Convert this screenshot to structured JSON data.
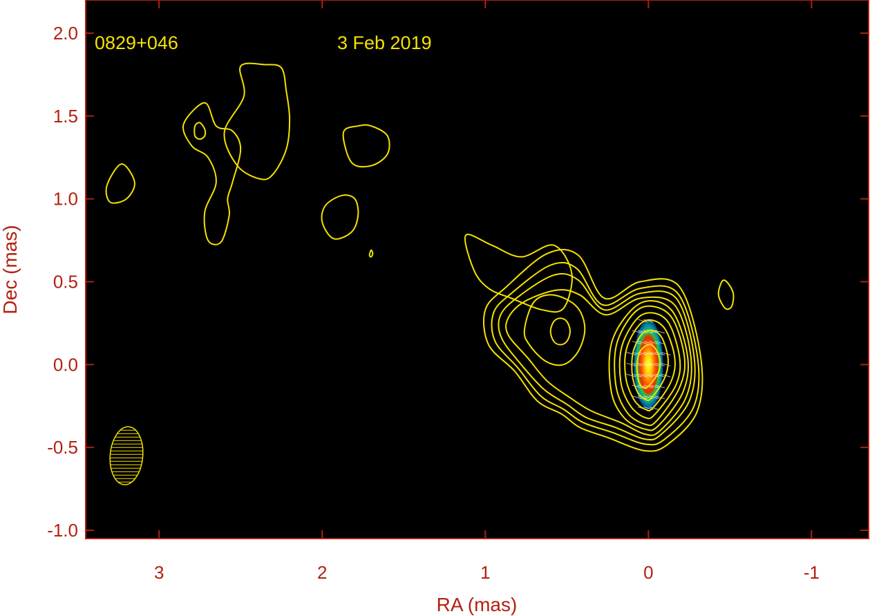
{
  "chart_data": {
    "type": "contour",
    "annotations": {
      "source": "0829+046",
      "date": "3 Feb 2019"
    },
    "xlabel": "RA (mas)",
    "ylabel": "Dec (mas)",
    "xlim": [
      3.45,
      -1.35
    ],
    "ylim": [
      -1.05,
      2.2
    ],
    "xticks": [
      3,
      2,
      1,
      0,
      -1
    ],
    "xtick_labels": [
      "3",
      "2",
      "1",
      "0",
      "-1"
    ],
    "yticks": [
      2.0,
      1.5,
      1.0,
      0.5,
      0.0,
      -0.5,
      -1.0
    ],
    "ytick_labels": [
      "2.0",
      "1.5",
      "1.0",
      "0.5",
      "0.0",
      "-0.5",
      "-1.0"
    ],
    "core": {
      "ra": 0.0,
      "dec": 0.0,
      "ra_halfwidth": 0.09,
      "dec_halfwidth": 0.27
    },
    "beam": {
      "ra": 3.2,
      "dec": -0.55,
      "major": 0.35,
      "minor": 0.2,
      "pa_deg": 5
    },
    "core_contours": [
      [
        [
          -0.32,
          0.05
        ],
        [
          -0.3,
          -0.28
        ],
        [
          -0.12,
          -0.48
        ],
        [
          0.02,
          -0.52
        ],
        [
          0.25,
          -0.44
        ],
        [
          0.42,
          -0.38
        ],
        [
          0.53,
          -0.3
        ],
        [
          0.68,
          -0.22
        ],
        [
          0.82,
          -0.04
        ],
        [
          0.98,
          0.12
        ],
        [
          1.0,
          0.33
        ],
        [
          0.87,
          0.47
        ],
        [
          0.62,
          0.67
        ],
        [
          0.43,
          0.66
        ],
        [
          0.27,
          0.4
        ],
        [
          0.05,
          0.5
        ],
        [
          -0.19,
          0.47
        ]
      ],
      [
        [
          -0.3,
          0.05
        ],
        [
          -0.28,
          -0.25
        ],
        [
          -0.1,
          -0.45
        ],
        [
          0.02,
          -0.48
        ],
        [
          0.22,
          -0.41
        ],
        [
          0.4,
          -0.35
        ],
        [
          0.52,
          -0.27
        ],
        [
          0.66,
          -0.19
        ],
        [
          0.8,
          -0.02
        ],
        [
          0.94,
          0.14
        ],
        [
          0.95,
          0.31
        ],
        [
          0.84,
          0.43
        ],
        [
          0.6,
          0.6
        ],
        [
          0.44,
          0.58
        ],
        [
          0.28,
          0.36
        ],
        [
          0.05,
          0.46
        ],
        [
          -0.18,
          0.43
        ]
      ],
      [
        [
          -0.28,
          0.05
        ],
        [
          -0.25,
          -0.22
        ],
        [
          -0.08,
          -0.42
        ],
        [
          0.02,
          -0.45
        ],
        [
          0.2,
          -0.38
        ],
        [
          0.38,
          -0.32
        ],
        [
          0.5,
          -0.24
        ],
        [
          0.64,
          -0.15
        ],
        [
          0.78,
          0.0
        ],
        [
          0.9,
          0.16
        ],
        [
          0.91,
          0.29
        ],
        [
          0.81,
          0.4
        ],
        [
          0.58,
          0.54
        ],
        [
          0.43,
          0.51
        ],
        [
          0.27,
          0.33
        ],
        [
          0.05,
          0.43
        ],
        [
          -0.17,
          0.4
        ]
      ],
      [
        [
          -0.26,
          0.05
        ],
        [
          -0.23,
          -0.2
        ],
        [
          -0.07,
          -0.4
        ],
        [
          0.02,
          -0.42
        ],
        [
          0.17,
          -0.35
        ],
        [
          0.35,
          -0.28
        ],
        [
          0.48,
          -0.2
        ],
        [
          0.62,
          -0.1
        ],
        [
          0.74,
          0.04
        ],
        [
          0.86,
          0.18
        ],
        [
          0.86,
          0.28
        ],
        [
          0.76,
          0.38
        ],
        [
          0.56,
          0.45
        ],
        [
          0.42,
          0.42
        ],
        [
          0.26,
          0.3
        ],
        [
          0.05,
          0.4
        ],
        [
          -0.16,
          0.36
        ]
      ],
      [
        [
          -0.24,
          0.05
        ],
        [
          -0.21,
          -0.17
        ],
        [
          -0.06,
          -0.37
        ],
        [
          0.02,
          -0.39
        ],
        [
          0.15,
          -0.32
        ],
        [
          0.23,
          -0.15
        ],
        [
          0.22,
          0.15
        ],
        [
          0.05,
          0.37
        ],
        [
          -0.14,
          0.33
        ]
      ],
      [
        [
          -0.22,
          0.05
        ],
        [
          -0.19,
          -0.14
        ],
        [
          -0.05,
          -0.34
        ],
        [
          0.02,
          -0.36
        ],
        [
          0.13,
          -0.29
        ],
        [
          0.2,
          -0.12
        ],
        [
          0.19,
          0.14
        ],
        [
          0.05,
          0.34
        ],
        [
          -0.13,
          0.3
        ]
      ],
      [
        [
          -0.19,
          0.05
        ],
        [
          -0.17,
          -0.12
        ],
        [
          -0.04,
          -0.3
        ],
        [
          0.02,
          -0.32
        ],
        [
          0.11,
          -0.25
        ],
        [
          0.17,
          -0.1
        ],
        [
          0.16,
          0.12
        ],
        [
          0.04,
          0.3
        ],
        [
          -0.11,
          0.27
        ]
      ],
      [
        [
          -0.16,
          0.05
        ],
        [
          -0.14,
          -0.1
        ],
        [
          -0.03,
          -0.26
        ],
        [
          0.02,
          -0.27
        ],
        [
          0.09,
          -0.21
        ],
        [
          0.14,
          -0.07
        ],
        [
          0.13,
          0.11
        ],
        [
          0.03,
          0.26
        ],
        [
          -0.09,
          0.23
        ]
      ],
      [
        [
          -0.12,
          0.04
        ],
        [
          -0.1,
          -0.08
        ],
        [
          -0.02,
          -0.2
        ],
        [
          0.02,
          -0.21
        ],
        [
          0.07,
          -0.16
        ],
        [
          0.1,
          -0.05
        ],
        [
          0.09,
          0.09
        ],
        [
          0.02,
          0.2
        ],
        [
          -0.07,
          0.18
        ]
      ],
      [
        [
          -0.07,
          0.03
        ],
        [
          -0.06,
          -0.05
        ],
        [
          0.0,
          -0.13
        ],
        [
          0.03,
          -0.14
        ],
        [
          0.06,
          -0.1
        ],
        [
          0.07,
          0.0
        ],
        [
          0.05,
          0.08
        ],
        [
          0.0,
          0.12
        ],
        [
          -0.04,
          0.1
        ]
      ]
    ],
    "jet_contours": [
      [
        [
          0.76,
          0.21
        ],
        [
          0.73,
          0.12
        ],
        [
          0.63,
          0.02
        ],
        [
          0.52,
          0.0
        ],
        [
          0.43,
          0.08
        ],
        [
          0.39,
          0.22
        ],
        [
          0.44,
          0.35
        ],
        [
          0.58,
          0.42
        ],
        [
          0.7,
          0.38
        ]
      ],
      [
        [
          0.6,
          0.2
        ],
        [
          0.58,
          0.14
        ],
        [
          0.54,
          0.12
        ],
        [
          0.5,
          0.14
        ],
        [
          0.48,
          0.2
        ],
        [
          0.5,
          0.26
        ],
        [
          0.54,
          0.28
        ],
        [
          0.58,
          0.26
        ]
      ],
      [
        [
          1.12,
          0.78
        ],
        [
          1.07,
          0.57
        ],
        [
          0.98,
          0.46
        ],
        [
          0.84,
          0.4
        ],
        [
          0.65,
          0.33
        ],
        [
          0.52,
          0.34
        ],
        [
          0.47,
          0.55
        ],
        [
          0.58,
          0.72
        ],
        [
          0.78,
          0.65
        ],
        [
          0.96,
          0.72
        ]
      ],
      [
        [
          -0.48,
          0.5
        ],
        [
          -0.52,
          0.43
        ],
        [
          -0.51,
          0.35
        ],
        [
          -0.47,
          0.34
        ],
        [
          -0.43,
          0.42
        ],
        [
          -0.45,
          0.5
        ]
      ],
      [
        [
          1.78,
          1.44
        ],
        [
          1.87,
          1.4
        ],
        [
          1.82,
          1.22
        ],
        [
          1.7,
          1.2
        ],
        [
          1.6,
          1.27
        ],
        [
          1.6,
          1.38
        ],
        [
          1.7,
          1.44
        ]
      ],
      [
        [
          1.88,
          1.02
        ],
        [
          1.98,
          0.96
        ],
        [
          2.0,
          0.86
        ],
        [
          1.93,
          0.76
        ],
        [
          1.82,
          0.8
        ],
        [
          1.78,
          0.9
        ],
        [
          1.8,
          1.0
        ]
      ],
      [
        [
          3.23,
          1.21
        ],
        [
          3.32,
          1.08
        ],
        [
          3.3,
          0.98
        ],
        [
          3.2,
          1.0
        ],
        [
          3.15,
          1.1
        ]
      ],
      [
        [
          2.35,
          1.81
        ],
        [
          2.5,
          1.8
        ],
        [
          2.48,
          1.62
        ],
        [
          2.6,
          1.4
        ],
        [
          2.52,
          1.2
        ],
        [
          2.38,
          1.12
        ],
        [
          2.3,
          1.15
        ],
        [
          2.22,
          1.3
        ],
        [
          2.2,
          1.48
        ],
        [
          2.22,
          1.65
        ],
        [
          2.25,
          1.79
        ]
      ],
      [
        [
          2.72,
          1.58
        ],
        [
          2.85,
          1.45
        ],
        [
          2.8,
          1.32
        ],
        [
          2.7,
          1.25
        ],
        [
          2.65,
          1.1
        ],
        [
          2.72,
          0.92
        ],
        [
          2.7,
          0.75
        ],
        [
          2.62,
          0.74
        ],
        [
          2.57,
          0.9
        ],
        [
          2.58,
          1.0
        ],
        [
          2.55,
          1.1
        ],
        [
          2.5,
          1.3
        ],
        [
          2.55,
          1.41
        ],
        [
          2.65,
          1.44
        ]
      ],
      [
        [
          2.72,
          1.42
        ],
        [
          2.75,
          1.46
        ],
        [
          2.78,
          1.44
        ],
        [
          2.78,
          1.38
        ],
        [
          2.75,
          1.36
        ],
        [
          2.72,
          1.38
        ]
      ],
      [
        [
          1.71,
          0.66
        ],
        [
          1.7,
          0.69
        ],
        [
          1.69,
          0.67
        ],
        [
          1.7,
          0.65
        ]
      ]
    ]
  }
}
